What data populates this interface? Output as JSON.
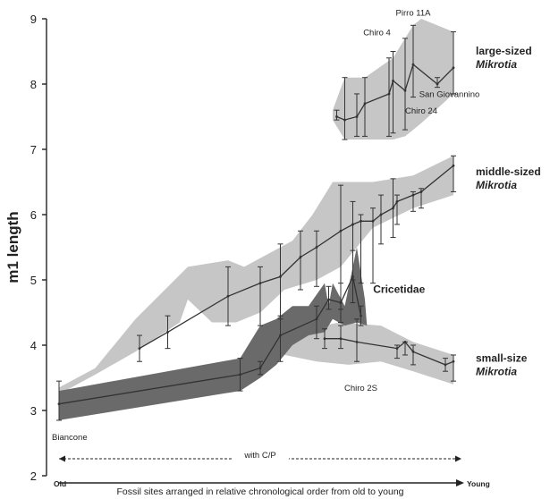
{
  "chart_data": {
    "type": "line",
    "ylabel": "m1 length",
    "xlabel": "Fossil sites arranged in relative chronological order from old to young",
    "ylim": [
      2,
      9
    ],
    "yticks": [
      "2",
      "3",
      "4",
      "5",
      "6",
      "7",
      "8",
      "9"
    ],
    "xlim": [
      0,
      100
    ],
    "x_old": "Old",
    "x_young": "Young",
    "period_label": "with C/P",
    "groups": [
      {
        "name_line1": "large-sized",
        "name_line2": "Mikrotia",
        "fill": "#c6c6c6",
        "band_upper": [
          [
            68,
            7.6
          ],
          [
            71,
            8.1
          ],
          [
            76,
            8.1
          ],
          [
            83,
            8.4
          ],
          [
            86,
            8.7
          ],
          [
            88,
            8.9
          ],
          [
            90,
            9.0
          ],
          [
            98,
            8.8
          ]
        ],
        "band_lower": [
          [
            98,
            7.85
          ],
          [
            90,
            7.4
          ],
          [
            88,
            7.3
          ],
          [
            86,
            7.2
          ],
          [
            83,
            7.15
          ],
          [
            76,
            7.15
          ],
          [
            71,
            7.15
          ],
          [
            68,
            7.45
          ]
        ],
        "points": [
          {
            "x": 69,
            "y": 7.5,
            "lo": 7.45,
            "hi": 7.6
          },
          {
            "x": 71,
            "y": 7.45,
            "lo": 7.15,
            "hi": 8.1
          },
          {
            "x": 74,
            "y": 7.5,
            "lo": 7.2,
            "hi": 7.85
          },
          {
            "x": 76,
            "y": 7.7,
            "lo": 7.2,
            "hi": 8.1
          },
          {
            "x": 82,
            "y": 7.85,
            "lo": 7.2,
            "hi": 8.4
          },
          {
            "x": 83,
            "y": 8.05,
            "lo": 7.25,
            "hi": 8.5
          },
          {
            "x": 86,
            "y": 7.9,
            "lo": 7.3,
            "hi": 8.7
          },
          {
            "x": 88,
            "y": 8.3,
            "lo": 7.8,
            "hi": 8.9
          },
          {
            "x": 94,
            "y": 8.0,
            "lo": 7.95,
            "hi": 8.1
          },
          {
            "x": 98,
            "y": 8.25,
            "lo": 7.85,
            "hi": 8.8
          }
        ]
      },
      {
        "name_line1": "middle-sized",
        "name_line2": "Mikrotia",
        "fill": "#c6c6c6",
        "band_upper": [
          [
            0,
            3.35
          ],
          [
            9,
            3.65
          ],
          [
            19,
            4.4
          ],
          [
            32,
            5.2
          ],
          [
            42,
            5.3
          ],
          [
            46,
            5.2
          ],
          [
            58,
            5.6
          ],
          [
            63,
            6.0
          ],
          [
            68,
            6.5
          ],
          [
            78,
            6.5
          ],
          [
            88,
            6.6
          ],
          [
            98,
            6.9
          ]
        ],
        "band_lower": [
          [
            98,
            6.3
          ],
          [
            88,
            6.1
          ],
          [
            78,
            5.8
          ],
          [
            70,
            5.2
          ],
          [
            64,
            5.0
          ],
          [
            56,
            4.85
          ],
          [
            50,
            4.5
          ],
          [
            44,
            4.35
          ],
          [
            38,
            4.35
          ],
          [
            32,
            4.7
          ],
          [
            30,
            4.35
          ],
          [
            19,
            3.9
          ],
          [
            9,
            3.55
          ],
          [
            0,
            3.25
          ]
        ],
        "points": [
          {
            "x": 20,
            "y": 3.95,
            "lo": 3.75,
            "hi": 4.15
          },
          {
            "x": 27,
            "y": 4.2,
            "lo": 3.95,
            "hi": 4.45
          },
          {
            "x": 42,
            "y": 4.75,
            "lo": 4.3,
            "hi": 5.2
          },
          {
            "x": 50,
            "y": 4.95,
            "lo": 4.3,
            "hi": 5.2
          },
          {
            "x": 55,
            "y": 5.05,
            "lo": 4.4,
            "hi": 5.55
          },
          {
            "x": 60,
            "y": 5.35,
            "lo": 4.85,
            "hi": 5.75
          },
          {
            "x": 64,
            "y": 5.5,
            "lo": 4.9,
            "hi": 5.75
          },
          {
            "x": 70,
            "y": 5.75,
            "lo": 4.55,
            "hi": 6.45
          },
          {
            "x": 73,
            "y": 5.85,
            "lo": 5.0,
            "hi": 6.2
          },
          {
            "x": 75,
            "y": 5.9,
            "lo": 4.95,
            "hi": 6.0
          },
          {
            "x": 78,
            "y": 5.9,
            "lo": 4.95,
            "hi": 6.1
          },
          {
            "x": 80,
            "y": 6.0,
            "lo": 5.55,
            "hi": 6.3
          },
          {
            "x": 83,
            "y": 6.1,
            "lo": 5.65,
            "hi": 6.55
          },
          {
            "x": 84,
            "y": 6.2,
            "lo": 5.85,
            "hi": 6.3
          },
          {
            "x": 88,
            "y": 6.3,
            "lo": 6.05,
            "hi": 6.35
          },
          {
            "x": 90,
            "y": 6.35,
            "lo": 6.1,
            "hi": 6.4
          },
          {
            "x": 98,
            "y": 6.75,
            "lo": 6.35,
            "hi": 6.9
          }
        ]
      },
      {
        "name_line1": "small-size",
        "name_line2": "Mikrotia",
        "fill": "#c6c6c6",
        "band_upper": [
          [
            56,
            4.2
          ],
          [
            70,
            4.35
          ],
          [
            80,
            4.3
          ],
          [
            88,
            4.05
          ],
          [
            98,
            3.85
          ]
        ],
        "band_lower": [
          [
            98,
            3.4
          ],
          [
            88,
            3.6
          ],
          [
            80,
            3.75
          ],
          [
            72,
            3.7
          ],
          [
            64,
            3.75
          ],
          [
            56,
            3.85
          ]
        ],
        "points": [
          {
            "x": 66,
            "y": 4.1,
            "lo": 3.95,
            "hi": 4.25
          },
          {
            "x": 70,
            "y": 4.1,
            "lo": 3.95,
            "hi": 4.3
          },
          {
            "x": 74,
            "y": 4.05,
            "lo": 3.75,
            "hi": 4.4
          },
          {
            "x": 84,
            "y": 3.95,
            "lo": 3.8,
            "hi": 4.0
          },
          {
            "x": 86,
            "y": 4.05,
            "lo": 3.85,
            "hi": 4.05
          },
          {
            "x": 88,
            "y": 3.9,
            "lo": 3.7,
            "hi": 4.0
          },
          {
            "x": 96,
            "y": 3.7,
            "lo": 3.6,
            "hi": 3.8
          },
          {
            "x": 98,
            "y": 3.75,
            "lo": 3.45,
            "hi": 3.85
          }
        ]
      },
      {
        "name_line1": "Cricetidae",
        "name_line2": "",
        "fill": "#6a6a6a",
        "band_upper": [
          [
            0,
            3.3
          ],
          [
            45,
            3.8
          ],
          [
            50,
            4.3
          ],
          [
            54,
            4.4
          ],
          [
            58,
            4.6
          ],
          [
            62,
            4.6
          ],
          [
            66,
            4.95
          ],
          [
            67,
            4.6
          ],
          [
            68,
            4.95
          ],
          [
            71,
            4.6
          ],
          [
            74,
            5.5
          ],
          [
            76,
            4.7
          ],
          [
            76.5,
            4.3
          ]
        ],
        "band_lower": [
          [
            76.5,
            4.3
          ],
          [
            74,
            4.35
          ],
          [
            71,
            4.3
          ],
          [
            68,
            4.4
          ],
          [
            66,
            4.2
          ],
          [
            62,
            4.15
          ],
          [
            58,
            4.0
          ],
          [
            54,
            3.7
          ],
          [
            50,
            3.5
          ],
          [
            45,
            3.3
          ],
          [
            0,
            2.85
          ]
        ],
        "points": [
          {
            "x": 0,
            "y": 3.1,
            "lo": 2.85,
            "hi": 3.45
          },
          {
            "x": 45,
            "y": 3.55,
            "lo": 3.3,
            "hi": 3.8
          },
          {
            "x": 50,
            "y": 3.65,
            "lo": 3.55,
            "hi": 3.75
          },
          {
            "x": 55,
            "y": 4.15,
            "lo": 3.75,
            "hi": 4.45
          },
          {
            "x": 64,
            "y": 4.4,
            "lo": 4.1,
            "hi": 4.6
          },
          {
            "x": 67,
            "y": 4.7,
            "lo": 4.55,
            "hi": 4.9
          },
          {
            "x": 70,
            "y": 4.65,
            "lo": 4.35,
            "hi": 4.95
          },
          {
            "x": 73,
            "y": 5.05,
            "lo": 4.65,
            "hi": 5.45
          },
          {
            "x": 75,
            "y": 4.45,
            "lo": 4.3,
            "hi": 4.6
          }
        ]
      }
    ],
    "site_labels": [
      {
        "text": "Biancone",
        "x": 0,
        "y": 2.55
      },
      {
        "text": "Chiro 4",
        "x": 79,
        "y": 8.75
      },
      {
        "text": "Pirro 11A",
        "x": 88,
        "y": 9.05
      },
      {
        "text": "Chiro 24",
        "x": 90,
        "y": 7.55
      },
      {
        "text": "San Giovannino",
        "x": 97,
        "y": 7.8
      },
      {
        "text": "Chiro 2S",
        "x": 75,
        "y": 3.3
      }
    ]
  }
}
